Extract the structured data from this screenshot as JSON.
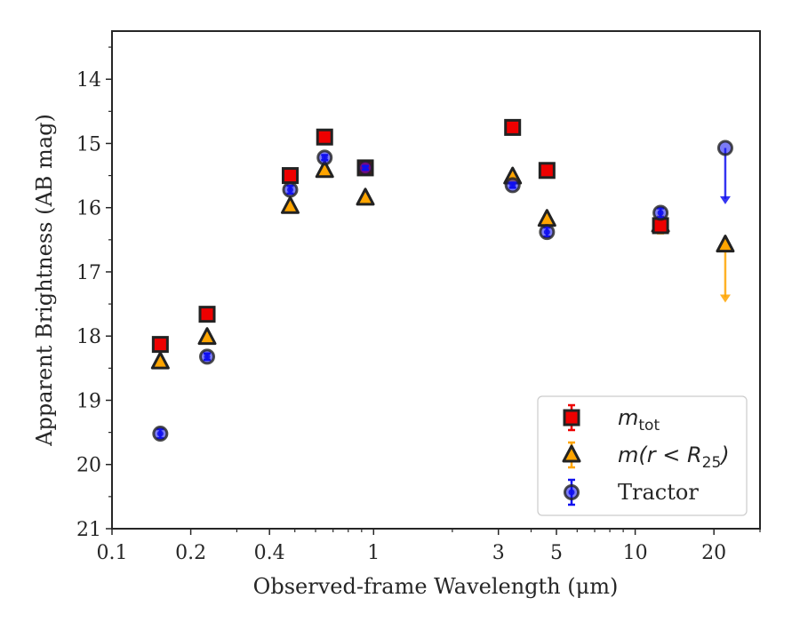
{
  "chart_data": {
    "type": "scatter",
    "xscale": "log",
    "yinverted": true,
    "xlim": [
      0.1,
      30
    ],
    "ylim": [
      21,
      13.25
    ],
    "xticks": [
      {
        "value": 0.1,
        "label": "0.1"
      },
      {
        "value": 0.2,
        "label": "0.2"
      },
      {
        "value": 0.4,
        "label": "0.4"
      },
      {
        "value": 1,
        "label": "1"
      },
      {
        "value": 3,
        "label": "3"
      },
      {
        "value": 5,
        "label": "5"
      },
      {
        "value": 10,
        "label": "10"
      },
      {
        "value": 20,
        "label": "20"
      }
    ],
    "yticks": [
      {
        "value": 14,
        "label": "14"
      },
      {
        "value": 15,
        "label": "15"
      },
      {
        "value": 16,
        "label": "16"
      },
      {
        "value": 17,
        "label": "17"
      },
      {
        "value": 18,
        "label": "18"
      },
      {
        "value": 19,
        "label": "19"
      },
      {
        "value": 20,
        "label": "20"
      },
      {
        "value": 21,
        "label": "21"
      }
    ],
    "xlabel": "Observed-frame Wavelength (μm)",
    "ylabel": "Apparent Brightness (AB mag)",
    "grid": false,
    "legend_position": "lower-right",
    "series": [
      {
        "name_main": "m",
        "name_sub": "tot",
        "marker": "square",
        "color": "#ee0000",
        "x": [
          0.153,
          0.231,
          0.48,
          0.65,
          0.93,
          3.4,
          4.6,
          12.5
        ],
        "y": [
          18.13,
          17.66,
          15.5,
          14.9,
          15.38,
          14.75,
          15.42,
          16.28
        ],
        "yerr": [
          0.04,
          0.04,
          0.03,
          0.03,
          0.03,
          0.03,
          0.04,
          0.06
        ],
        "upper_limits": []
      },
      {
        "name_main": "m(r < R",
        "name_sub": "25",
        "name_end": ")",
        "marker": "triangle",
        "color": "#ffa500",
        "x": [
          0.153,
          0.231,
          0.48,
          0.65,
          0.93,
          3.4,
          4.6,
          12.5
        ],
        "y": [
          18.4,
          18.02,
          15.98,
          15.42,
          15.85,
          15.52,
          16.18,
          16.27
        ],
        "yerr": [
          0.04,
          0.04,
          0.03,
          0.03,
          0.03,
          0.03,
          0.04,
          0.13
        ],
        "upper_limits": [
          {
            "x": 22.1,
            "y": 16.58,
            "y_arrow_end": 17.45
          }
        ]
      },
      {
        "name_main": "Tractor",
        "marker": "circle",
        "color": "#1010ee",
        "x": [
          0.153,
          0.231,
          0.48,
          0.65,
          0.93,
          3.4,
          4.6,
          12.5
        ],
        "y": [
          19.52,
          18.32,
          15.72,
          15.22,
          15.38,
          15.65,
          16.38,
          16.08
        ],
        "yerr": [
          0.07,
          0.05,
          0.06,
          0.04,
          0.03,
          0.04,
          0.07,
          0.07
        ],
        "upper_limits": [
          {
            "x": 22.1,
            "y": 15.07,
            "y_arrow_end": 15.92
          }
        ]
      }
    ]
  }
}
